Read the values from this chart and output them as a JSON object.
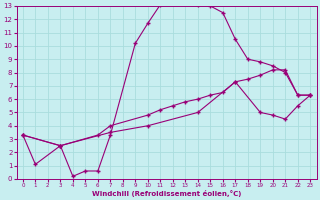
{
  "bg_color": "#c8eef0",
  "line_color": "#990077",
  "grid_color": "#aadddd",
  "xlabel": "Windchill (Refroidissement éolien,°C)",
  "xlim": [
    -0.5,
    23.5
  ],
  "ylim": [
    0,
    13
  ],
  "xticks": [
    0,
    1,
    2,
    3,
    4,
    5,
    6,
    7,
    8,
    9,
    10,
    11,
    12,
    13,
    14,
    15,
    16,
    17,
    18,
    19,
    20,
    21,
    22,
    23
  ],
  "yticks": [
    0,
    1,
    2,
    3,
    4,
    5,
    6,
    7,
    8,
    9,
    10,
    11,
    12,
    13
  ],
  "curve1_x": [
    0,
    1,
    3,
    4,
    5,
    6,
    7,
    9,
    10,
    11,
    12,
    13,
    14,
    15,
    16,
    17,
    18,
    19,
    20,
    21,
    22,
    23
  ],
  "curve1_y": [
    3.3,
    1.1,
    2.5,
    0.2,
    0.6,
    0.6,
    3.3,
    10.2,
    11.7,
    13.1,
    13.2,
    13.2,
    13.1,
    13.0,
    12.5,
    10.5,
    9.0,
    8.8,
    8.5,
    8.0,
    6.3,
    6.3
  ],
  "curve2_x": [
    0,
    3,
    6,
    7,
    10,
    11,
    12,
    13,
    14,
    15,
    16,
    17,
    18,
    19,
    20,
    21,
    22,
    23
  ],
  "curve2_y": [
    3.3,
    2.5,
    3.3,
    4.0,
    4.8,
    5.2,
    5.5,
    5.8,
    6.0,
    6.3,
    6.5,
    7.3,
    7.5,
    7.8,
    8.2,
    8.2,
    6.3,
    6.3
  ],
  "curve3_x": [
    0,
    3,
    7,
    10,
    14,
    17,
    19,
    20,
    21,
    22,
    23
  ],
  "curve3_y": [
    3.3,
    2.5,
    3.5,
    4.0,
    5.0,
    7.3,
    5.0,
    4.8,
    4.5,
    5.5,
    6.3
  ]
}
